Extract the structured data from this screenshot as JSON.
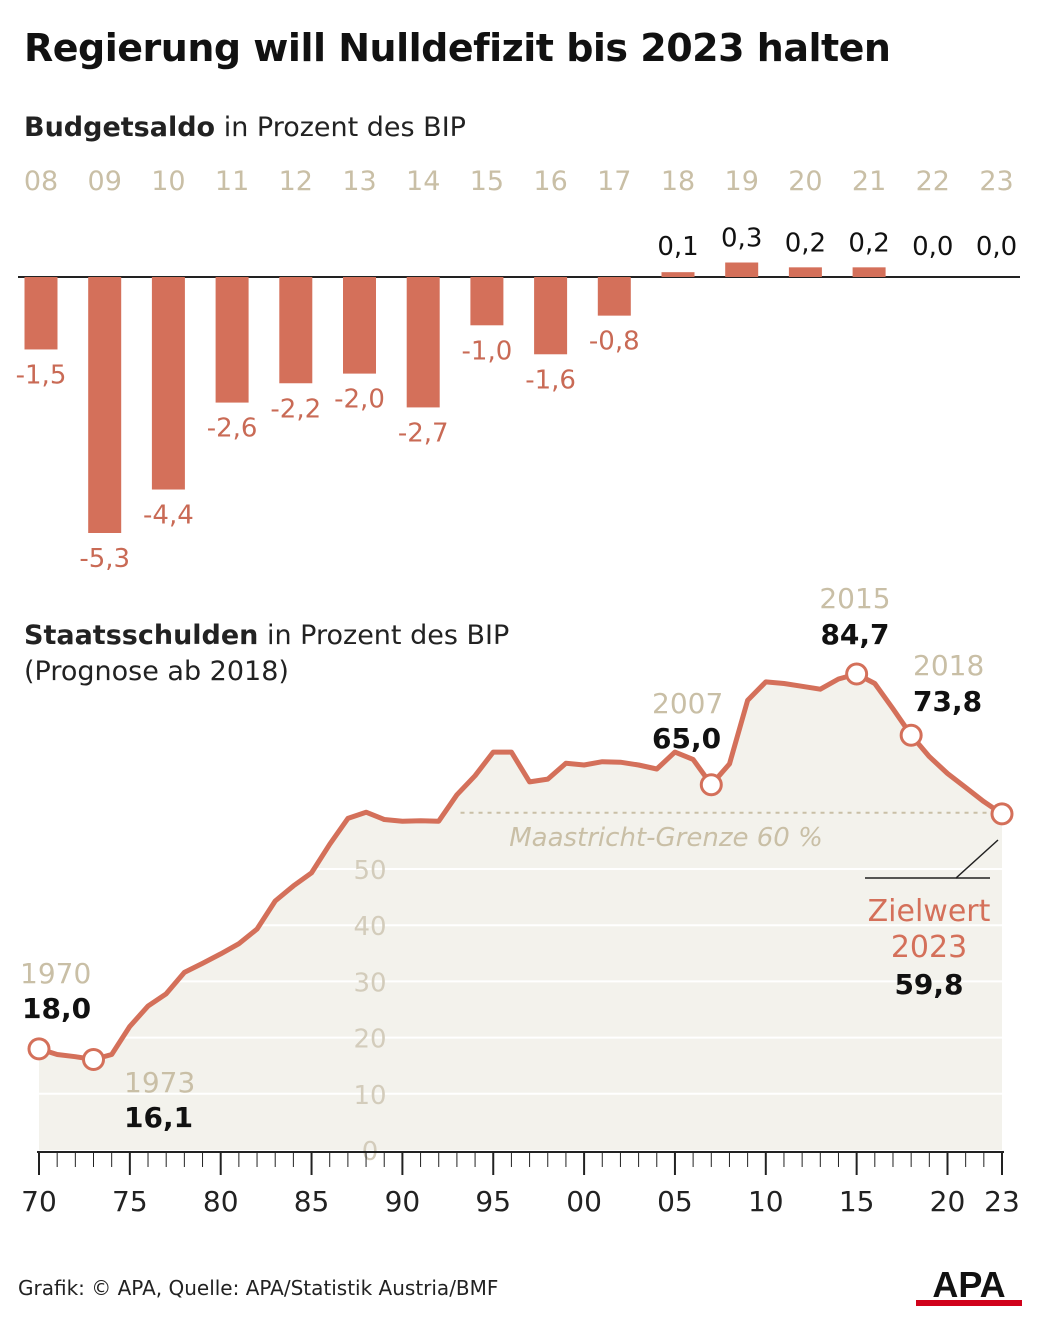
{
  "title": "Regierung will Nulldefizit bis 2023 halten",
  "budget": {
    "subtitle_bold": "Budgetsaldo",
    "subtitle_rest": " in Prozent des BIP"
  },
  "debt": {
    "subtitle_bold": "Staatsschulden",
    "subtitle_rest": " in Prozent des BIP",
    "subtitle_line2": "(Prognose ab 2018)"
  },
  "source": "Grafik: © APA, Quelle: APA/Statistik Austria/BMF",
  "logo_text": "APA",
  "colors": {
    "bar": "#d4705a",
    "line": "#d4705a",
    "area": "#f3f2ec",
    "year": "#c9bfa6"
  },
  "chart_data": [
    {
      "type": "bar",
      "title": "Budgetsaldo in Prozent des BIP",
      "categories": [
        "08",
        "09",
        "10",
        "11",
        "12",
        "13",
        "14",
        "15",
        "16",
        "17",
        "18",
        "19",
        "20",
        "21",
        "22",
        "23"
      ],
      "values": [
        -1.5,
        -5.3,
        -4.4,
        -2.6,
        -2.2,
        -2.0,
        -2.7,
        -1.0,
        -1.6,
        -0.8,
        0.1,
        0.3,
        0.2,
        0.2,
        0.0,
        0.0
      ],
      "labels": [
        "-1,5",
        "-5,3",
        "-4,4",
        "-2,6",
        "-2,2",
        "-2,0",
        "-2,7",
        "-1,0",
        "-1,6",
        "-0,8",
        "0,1",
        "0,3",
        "0,2",
        "0,2",
        "0,0",
        "0,0"
      ],
      "ylim": [
        -5.3,
        0.3
      ]
    },
    {
      "type": "area",
      "title": "Staatsschulden in Prozent des BIP (Prognose ab 2018)",
      "xlim": [
        1970,
        2023
      ],
      "ylim": [
        0,
        90
      ],
      "x_tick_labels": [
        "70",
        "75",
        "80",
        "85",
        "90",
        "95",
        "00",
        "05",
        "10",
        "15",
        "20",
        "23"
      ],
      "x_tick_years": [
        1970,
        1975,
        1980,
        1985,
        1990,
        1995,
        2000,
        2005,
        2010,
        2015,
        2020,
        2023
      ],
      "y_ticks": [
        "0",
        "10",
        "20",
        "30",
        "40",
        "50"
      ],
      "x": [
        1970,
        1971,
        1972,
        1973,
        1974,
        1975,
        1976,
        1977,
        1978,
        1979,
        1980,
        1981,
        1982,
        1983,
        1984,
        1985,
        1986,
        1987,
        1988,
        1989,
        1990,
        1991,
        1992,
        1993,
        1994,
        1995,
        1996,
        1997,
        1998,
        1999,
        2000,
        2001,
        2002,
        2003,
        2004,
        2005,
        2006,
        2007,
        2008,
        2009,
        2010,
        2011,
        2012,
        2013,
        2014,
        2015,
        2016,
        2017,
        2018,
        2019,
        2020,
        2021,
        2022,
        2023
      ],
      "y": [
        18.0,
        17.0,
        16.6,
        16.1,
        17.0,
        22.0,
        25.6,
        27.8,
        31.6,
        33.2,
        34.9,
        36.7,
        39.3,
        44.3,
        47.0,
        49.3,
        54.4,
        59.0,
        60.1,
        58.8,
        58.5,
        58.6,
        58.5,
        63.2,
        66.6,
        70.8,
        70.8,
        65.5,
        66.0,
        68.8,
        68.5,
        69.1,
        69.0,
        68.5,
        67.8,
        70.8,
        69.5,
        65.0,
        68.7,
        80.0,
        83.3,
        83.0,
        82.5,
        82.0,
        83.8,
        84.7,
        83.0,
        78.5,
        73.8,
        70.0,
        67.0,
        64.5,
        62.0,
        59.8
      ],
      "reference_line": {
        "value": 60,
        "label": "Maastricht-Grenze 60 %"
      },
      "annotations": [
        {
          "year_label": "1970",
          "value_label": "18,0",
          "x": 1970,
          "y": 18.0
        },
        {
          "year_label": "1973",
          "value_label": "16,1",
          "x": 1973,
          "y": 16.1
        },
        {
          "year_label": "2007",
          "value_label": "65,0",
          "x": 2007,
          "y": 65.0
        },
        {
          "year_label": "2015",
          "value_label": "84,7",
          "x": 2015,
          "y": 84.7
        },
        {
          "year_label": "2018",
          "value_label": "73,8",
          "x": 2018,
          "y": 73.8
        },
        {
          "year_label": "2023",
          "value_label": "59,8",
          "x": 2023,
          "y": 59.8,
          "prefix": "Zielwert"
        }
      ]
    }
  ]
}
